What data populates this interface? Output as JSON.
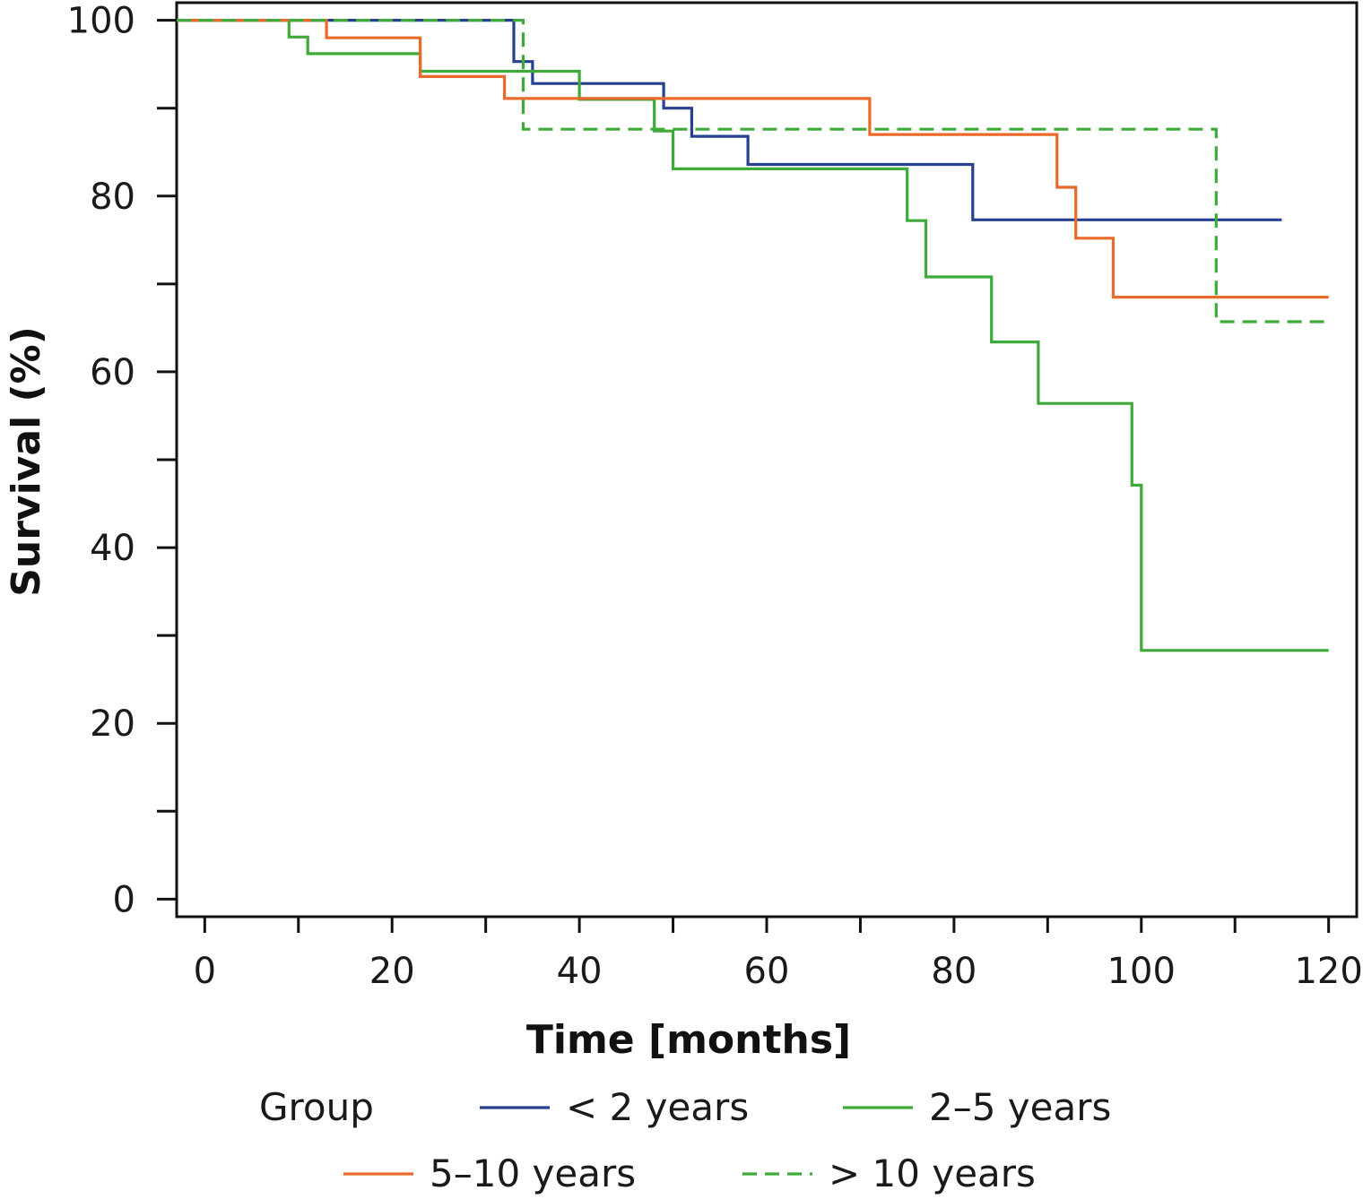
{
  "chart_data": {
    "type": "line",
    "step": true,
    "xlabel": "Time [months]",
    "ylabel": "Survival (%)",
    "xlim": [
      -3,
      123
    ],
    "ylim": [
      -2,
      102
    ],
    "x_ticks": [
      0,
      20,
      40,
      60,
      80,
      100,
      120
    ],
    "x_minor_ticks": [
      10,
      30,
      50,
      70,
      90,
      110
    ],
    "y_ticks": [
      0,
      20,
      40,
      60,
      80,
      100
    ],
    "y_minor_ticks": [
      10,
      30,
      50,
      70,
      90
    ],
    "grid": false,
    "legend": {
      "title": "Group",
      "placement": "bottom"
    },
    "series": [
      {
        "name": "< 2 years",
        "color": "#25418f",
        "dash": false,
        "points": [
          [
            -3,
            100
          ],
          [
            33,
            100
          ],
          [
            33,
            95.3
          ],
          [
            35,
            95.3
          ],
          [
            35,
            92.8
          ],
          [
            49,
            92.8
          ],
          [
            49,
            90
          ],
          [
            52,
            90
          ],
          [
            52,
            86.8
          ],
          [
            58,
            86.8
          ],
          [
            58,
            83.6
          ],
          [
            82,
            83.6
          ],
          [
            82,
            77.3
          ],
          [
            115,
            77.3
          ]
        ]
      },
      {
        "name": "2–5 years",
        "color": "#3eaa3a",
        "dash": false,
        "points": [
          [
            -3,
            100
          ],
          [
            9,
            100
          ],
          [
            9,
            98.1
          ],
          [
            11,
            98.1
          ],
          [
            11,
            96.2
          ],
          [
            23,
            96.2
          ],
          [
            23,
            94.2
          ],
          [
            40,
            94.2
          ],
          [
            40,
            91
          ],
          [
            48,
            91
          ],
          [
            48,
            87.4
          ],
          [
            50,
            87.4
          ],
          [
            50,
            83.1
          ],
          [
            75,
            83.1
          ],
          [
            75,
            77.2
          ],
          [
            77,
            77.2
          ],
          [
            77,
            70.8
          ],
          [
            84,
            70.8
          ],
          [
            84,
            63.4
          ],
          [
            89,
            63.4
          ],
          [
            89,
            56.4
          ],
          [
            99,
            56.4
          ],
          [
            99,
            47.1
          ],
          [
            100,
            47.1
          ],
          [
            100,
            28.3
          ],
          [
            120,
            28.3
          ]
        ]
      },
      {
        "name": "5–10 years",
        "color": "#ea6a2a",
        "dash": false,
        "points": [
          [
            -3,
            100
          ],
          [
            13,
            100
          ],
          [
            13,
            98
          ],
          [
            23,
            98
          ],
          [
            23,
            93.6
          ],
          [
            32,
            93.6
          ],
          [
            32,
            91.1
          ],
          [
            71,
            91.1
          ],
          [
            71,
            87
          ],
          [
            91,
            87
          ],
          [
            91,
            81
          ],
          [
            93,
            81
          ],
          [
            93,
            75.2
          ],
          [
            97,
            75.2
          ],
          [
            97,
            68.5
          ],
          [
            120,
            68.5
          ]
        ]
      },
      {
        "name": "> 10 years",
        "color": "#3eaa3a",
        "dash": true,
        "points": [
          [
            -3,
            100
          ],
          [
            34,
            100
          ],
          [
            34,
            87.6
          ],
          [
            108,
            87.6
          ],
          [
            108,
            65.7
          ],
          [
            120,
            65.7
          ]
        ]
      }
    ]
  }
}
